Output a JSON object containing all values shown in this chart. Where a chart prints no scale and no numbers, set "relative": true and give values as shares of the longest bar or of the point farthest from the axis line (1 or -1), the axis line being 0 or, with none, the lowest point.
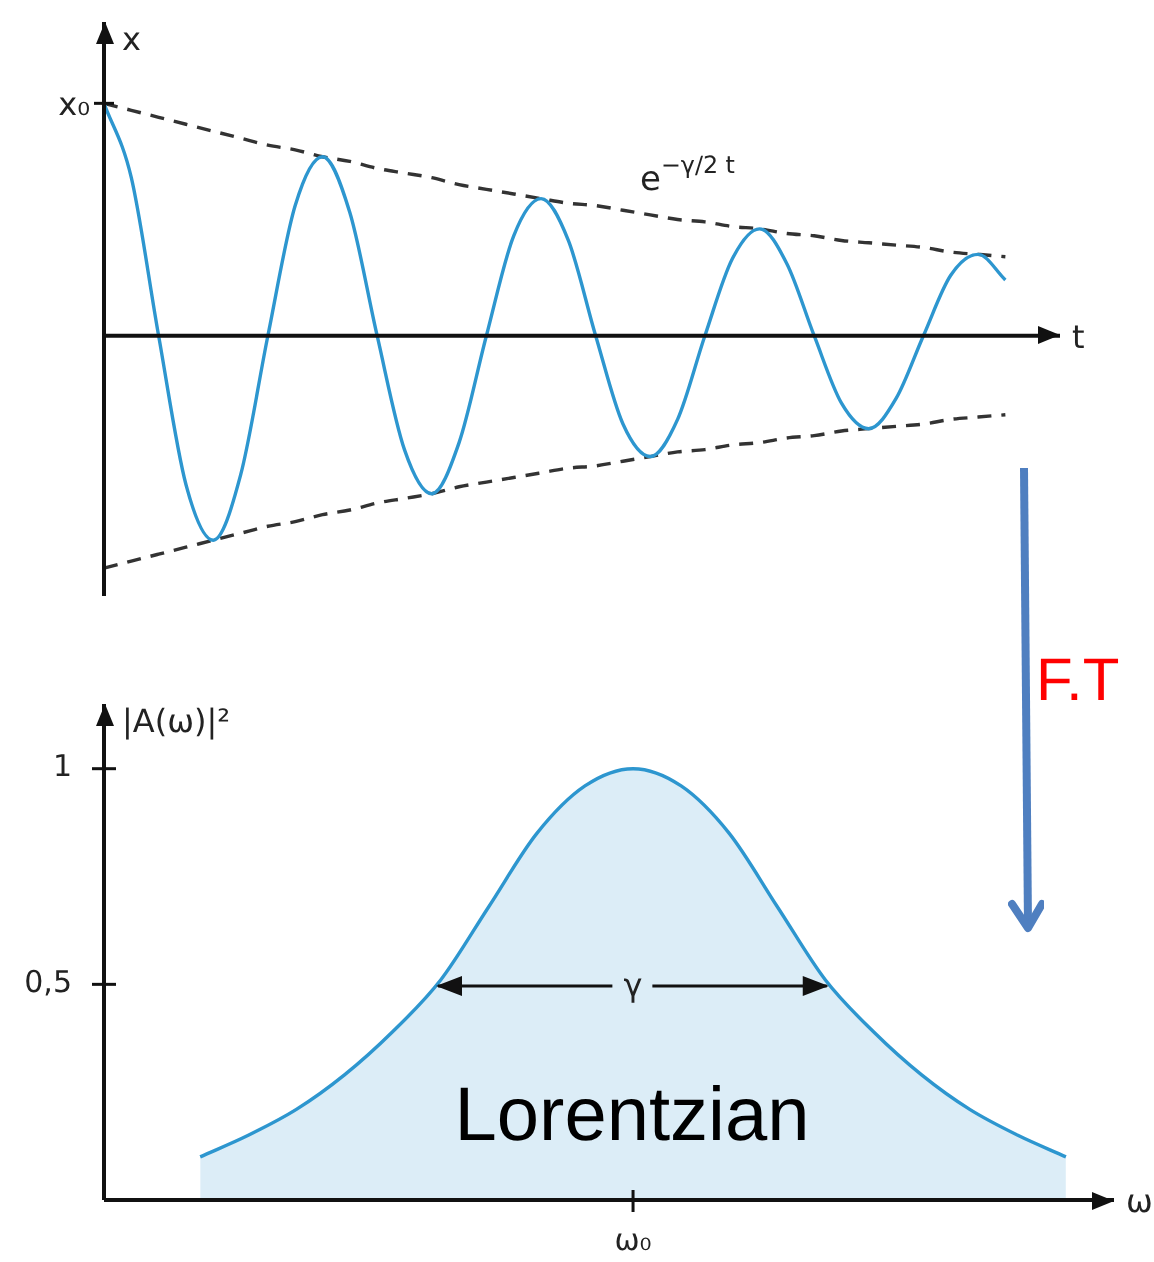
{
  "chart_data": [
    {
      "type": "line",
      "relative": true,
      "marker": "none",
      "xlabel": "t",
      "ylabel": "x",
      "annotations": [
        "x₀",
        "e$^{−γ/2 t}$"
      ],
      "categories": [
        null,
        null,
        null,
        null,
        null,
        null,
        null,
        null,
        null,
        null,
        null,
        null,
        null,
        null,
        null,
        null,
        null,
        null,
        null,
        null,
        null,
        null,
        null,
        null,
        null,
        null,
        null,
        null,
        null,
        null,
        null,
        null,
        null,
        null,
        null,
        null
      ],
      "series": [
        {
          "color": "#2d96cf",
          "values": [
            1,
            0.68,
            0,
            -0.64,
            -0.88,
            -0.6,
            0,
            0.56,
            0.77,
            0.53,
            0,
            -0.49,
            -0.68,
            -0.46,
            0,
            0.43,
            0.59,
            0.41,
            0,
            -0.38,
            -0.52,
            -0.36,
            0,
            0.33,
            0.46,
            0.31,
            0,
            -0.29,
            -0.4,
            -0.27,
            0,
            0.26,
            0.35,
            0.24,
            null,
            null
          ]
        },
        {
          "color": "#333333",
          "line_style": "dashed",
          "values": [
            1,
            0.97,
            0.94,
            0.91,
            0.88,
            0.85,
            0.82,
            0.8,
            0.77,
            0.75,
            0.72,
            0.7,
            0.68,
            0.65,
            0.63,
            0.61,
            0.59,
            0.57,
            0.56,
            0.54,
            0.52,
            0.5,
            0.49,
            0.47,
            0.46,
            0.44,
            0.43,
            0.41,
            0.4,
            0.39,
            0.38,
            0.36,
            0.35,
            0.34,
            null,
            null
          ]
        },
        {
          "color": "#333333",
          "line_style": "dashed",
          "values": [
            -1,
            -0.97,
            -0.94,
            -0.91,
            -0.88,
            -0.85,
            -0.82,
            -0.8,
            -0.77,
            -0.75,
            -0.72,
            -0.7,
            -0.68,
            -0.65,
            -0.63,
            -0.61,
            -0.59,
            -0.57,
            -0.56,
            -0.54,
            -0.52,
            -0.5,
            -0.49,
            -0.47,
            -0.46,
            -0.44,
            -0.43,
            -0.41,
            -0.4,
            -0.39,
            -0.38,
            -0.36,
            -0.35,
            -0.34,
            null,
            null
          ]
        }
      ]
    },
    {
      "type": "area",
      "marker": "none",
      "xlabel": "ω",
      "ylabel": "|A(ω)|²",
      "annotations": [
        "Lorentzian",
        "F.T",
        "γ"
      ],
      "ylim": [
        0,
        1.15
      ],
      "yticks": [
        {
          "value": 0.5,
          "label": "0,5"
        },
        1
      ],
      "categories": [
        null,
        null,
        null,
        null,
        null,
        null,
        null,
        null,
        null,
        null,
        null,
        "ω₀",
        null,
        null,
        null,
        null,
        null,
        null,
        null,
        null,
        null,
        null
      ],
      "series": [
        {
          "color": "#2d96cf",
          "values": [
            null,
            null,
            0.1,
            0.15,
            0.21,
            0.29,
            0.39,
            0.51,
            0.68,
            0.85,
            0.96,
            1,
            0.96,
            0.85,
            0.68,
            0.51,
            0.39,
            0.29,
            0.21,
            0.15,
            0.1,
            null
          ]
        }
      ]
    }
  ]
}
